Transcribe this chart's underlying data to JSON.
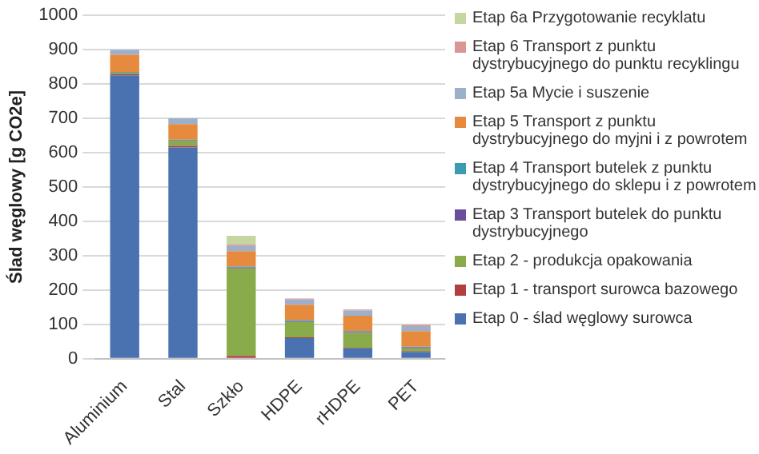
{
  "chart_data": {
    "type": "bar",
    "stacked": true,
    "ylabel": "Ślad węglowy [g CO2e]",
    "categories": [
      "Aluminium",
      "Stal",
      "Szkło",
      "HDPE",
      "rHDPE",
      "PET"
    ],
    "ylim": [
      0,
      1000
    ],
    "yticks": [
      0,
      100,
      200,
      300,
      400,
      500,
      600,
      700,
      800,
      900,
      1000
    ],
    "grid": "y",
    "legend": "right",
    "series": [
      {
        "name": "Etap 0 - ślad węglowy surowca",
        "color": "#4a72b0",
        "values": [
          825,
          615,
          0,
          60,
          30,
          20
        ]
      },
      {
        "name": "Etap 1 - transport surowca bazowego",
        "color": "#b04040",
        "values": [
          3,
          5,
          8,
          2,
          2,
          2
        ]
      },
      {
        "name": "Etap 2 - produkcja opakowania",
        "color": "#8aab4a",
        "values": [
          5,
          15,
          255,
          45,
          43,
          8
        ]
      },
      {
        "name": "Etap 3 Transport butelek do punktu dystrybucyjnego",
        "color": "#6a4e9a",
        "values": [
          1,
          1,
          3,
          3,
          3,
          3
        ]
      },
      {
        "name": "Etap 4 Transport butelek z punktu dystrybucyjnego do sklepu i z powrotem",
        "color": "#3b9bb0",
        "values": [
          1,
          2,
          2,
          2,
          2,
          2
        ]
      },
      {
        "name": "Etap 5 Transport z punktu dystrybucyjnego do myjni i z powrotem",
        "color": "#e68a3d",
        "values": [
          50,
          45,
          45,
          45,
          45,
          45
        ]
      },
      {
        "name": "Etap 5a Mycie i suszenie",
        "color": "#9cb0cc",
        "values": [
          15,
          17,
          15,
          15,
          15,
          15
        ]
      },
      {
        "name": "Etap 6 Transport z punktu dystrybucyjnego do punktu recyklingu",
        "color": "#d99694",
        "values": [
          0,
          0,
          5,
          3,
          3,
          3
        ]
      },
      {
        "name": "Etap 6a Przygotowanie recyklatu",
        "color": "#c4d7a0",
        "values": [
          0,
          0,
          25,
          0,
          0,
          0
        ]
      }
    ]
  }
}
